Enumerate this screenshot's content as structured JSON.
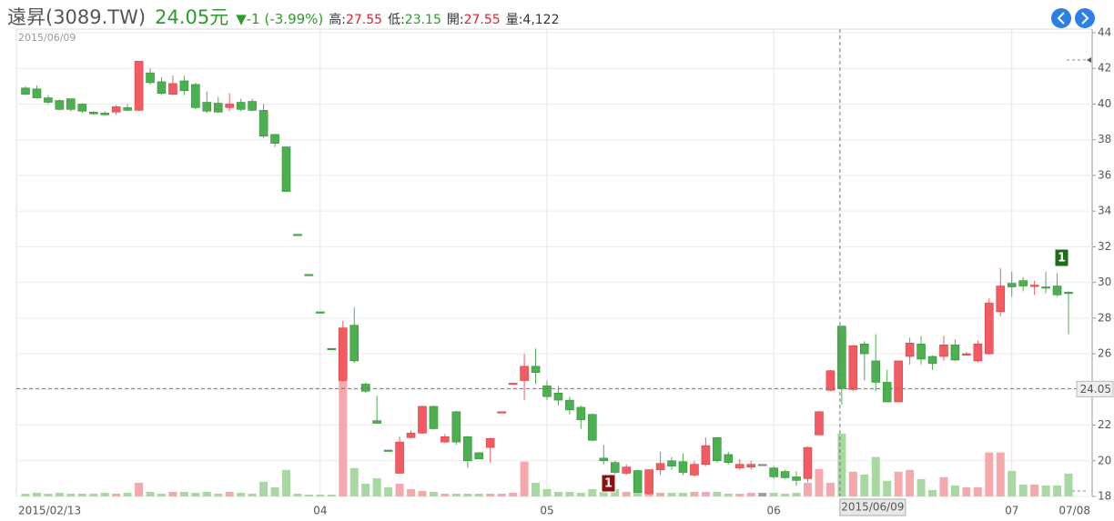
{
  "chart_data": {
    "type": "candlestick",
    "title": "遠昇(3089.TW)",
    "price": 24.05,
    "currency": "元",
    "change": "▼-1 (-3.99%)",
    "quote": [
      {
        "label": "高:",
        "value": 27.55
      },
      {
        "label": "低:",
        "value": 23.15
      },
      {
        "label": "開:",
        "value": 27.55
      },
      {
        "label": "量:",
        "value": "4,122"
      }
    ],
    "crosshair": {
      "date": "2015/06/09",
      "price": 24.05,
      "index": 72
    },
    "markers": [
      {
        "label": "1",
        "color": "#8b1010"
      },
      {
        "label": "1",
        "color": "#1e6b1e"
      }
    ],
    "up_color": "#f25b62",
    "down_color": "#4caf50",
    "flat_color": "#888888",
    "up_volume_color": "#f6a9ad",
    "down_volume_color": "#a9d9a2",
    "flat_volume_color": "#a0a0a0",
    "ylim": [
      18,
      44
    ],
    "yticks": [
      18,
      20,
      22,
      24,
      26,
      28,
      30,
      32,
      34,
      36,
      38,
      40,
      42,
      44
    ],
    "volume_lim": [
      0,
      9000
    ],
    "grid": true,
    "categories": [
      "2015/02/13",
      null,
      null,
      null,
      null,
      null,
      null,
      null,
      null,
      null,
      null,
      null,
      null,
      null,
      null,
      null,
      null,
      null,
      null,
      null,
      null,
      null,
      null,
      null,
      null,
      null,
      "04",
      null,
      null,
      null,
      null,
      null,
      null,
      null,
      null,
      null,
      null,
      null,
      null,
      null,
      null,
      null,
      null,
      null,
      null,
      null,
      "05",
      null,
      null,
      null,
      null,
      null,
      null,
      null,
      null,
      null,
      null,
      null,
      null,
      null,
      null,
      null,
      null,
      null,
      null,
      null,
      "06",
      null,
      null,
      null,
      null,
      null,
      null,
      null,
      null,
      null,
      null,
      null,
      null,
      null,
      null,
      null,
      null,
      null,
      null,
      null,
      null,
      "07",
      null,
      null,
      null,
      null,
      "07/08"
    ],
    "open": [
      40.9,
      40.85,
      40.35,
      40.2,
      40.3,
      40.0,
      39.55,
      39.5,
      39.55,
      39.8,
      39.65,
      41.75,
      41.25,
      40.55,
      41.3,
      41.1,
      40.1,
      40.05,
      39.8,
      40.1,
      40.15,
      39.65,
      38.3,
      37.6,
      32.7,
      30.45,
      28.35,
      26.3,
      24.5,
      27.6,
      24.3,
      22.25,
      20.6,
      19.3,
      21.3,
      21.55,
      23.05,
      21.05,
      22.75,
      21.35,
      20.45,
      20.75,
      22.75,
      24.35,
      24.5,
      25.3,
      24.2,
      23.8,
      23.4,
      23.0,
      22.6,
      20.15,
      19.9,
      19.3,
      19.45,
      18.15,
      19.5,
      20.0,
      19.95,
      19.2,
      19.8,
      21.3,
      20.35,
      19.6,
      19.65,
      19.8,
      19.6,
      19.4,
      19.1,
      19.0,
      21.45,
      23.95,
      27.55,
      24.0,
      26.55,
      25.6,
      24.4,
      23.3,
      25.85,
      26.55,
      25.85,
      25.85,
      26.5,
      26.0,
      25.6,
      26.0,
      28.35,
      29.95,
      30.1,
      29.85,
      29.75,
      29.8,
      29.45
    ],
    "high": [
      41.0,
      41.05,
      40.5,
      40.25,
      40.3,
      40.05,
      39.6,
      39.6,
      39.95,
      40.0,
      42.4,
      42.0,
      41.5,
      41.6,
      41.6,
      41.2,
      40.7,
      40.4,
      40.6,
      40.3,
      40.3,
      40.0,
      38.3,
      37.6,
      32.7,
      30.45,
      28.35,
      26.3,
      27.85,
      28.6,
      24.4,
      23.65,
      20.6,
      21.35,
      21.7,
      23.1,
      23.1,
      21.5,
      22.8,
      21.4,
      20.5,
      21.3,
      22.75,
      24.35,
      26.0,
      26.3,
      24.5,
      24.2,
      23.6,
      23.1,
      22.65,
      20.9,
      20.0,
      19.8,
      19.5,
      19.5,
      20.5,
      20.2,
      20.4,
      20.0,
      21.3,
      21.3,
      20.5,
      20.1,
      20.0,
      19.8,
      19.7,
      19.5,
      19.4,
      20.8,
      22.8,
      25.1,
      27.55,
      26.5,
      26.7,
      27.1,
      25.1,
      25.6,
      26.9,
      27.0,
      25.9,
      27.0,
      26.8,
      26.1,
      26.75,
      29.1,
      30.8,
      30.6,
      30.3,
      30.1,
      30.6,
      30.5,
      29.5
    ],
    "low": [
      40.5,
      40.3,
      40.0,
      39.65,
      39.6,
      39.5,
      39.4,
      39.35,
      39.4,
      39.6,
      39.6,
      41.1,
      40.5,
      40.5,
      40.5,
      39.7,
      39.5,
      39.5,
      39.6,
      39.6,
      39.6,
      38.1,
      37.6,
      35.1,
      32.7,
      30.45,
      28.35,
      26.3,
      24.45,
      25.5,
      23.8,
      22.1,
      20.6,
      19.3,
      21.25,
      21.5,
      21.75,
      21.0,
      20.9,
      19.6,
      20.1,
      19.9,
      22.75,
      24.35,
      23.4,
      24.3,
      23.4,
      23.1,
      22.6,
      21.8,
      21.1,
      19.8,
      18.4,
      19.2,
      18.2,
      18.1,
      19.2,
      19.5,
      19.2,
      19.1,
      19.7,
      19.9,
      19.8,
      19.5,
      19.5,
      19.8,
      19.0,
      19.0,
      18.6,
      18.8,
      21.45,
      23.9,
      23.15,
      23.9,
      24.5,
      23.9,
      23.3,
      23.3,
      25.4,
      25.4,
      25.1,
      25.6,
      25.6,
      25.9,
      25.5,
      25.95,
      28.1,
      29.2,
      29.5,
      29.3,
      29.4,
      29.2,
      27.1
    ],
    "close": [
      40.55,
      40.35,
      40.1,
      39.7,
      39.7,
      39.6,
      39.45,
      39.4,
      39.85,
      39.65,
      42.4,
      41.2,
      40.6,
      41.15,
      40.75,
      39.8,
      39.6,
      39.55,
      40.0,
      39.7,
      39.65,
      38.2,
      37.8,
      35.1,
      32.7,
      30.45,
      28.35,
      26.3,
      27.45,
      25.6,
      23.9,
      22.1,
      20.6,
      21.05,
      21.55,
      23.05,
      21.8,
      21.35,
      21.05,
      20.0,
      20.1,
      21.25,
      22.75,
      24.35,
      25.3,
      24.95,
      23.6,
      23.4,
      22.85,
      22.3,
      21.15,
      20.0,
      19.35,
      19.65,
      18.2,
      19.5,
      19.85,
      19.7,
      19.35,
      19.8,
      20.85,
      20.0,
      19.9,
      19.8,
      19.8,
      19.8,
      19.1,
      19.05,
      18.9,
      20.75,
      22.75,
      25.05,
      24.05,
      26.45,
      26.0,
      24.4,
      23.3,
      25.6,
      26.6,
      25.7,
      25.45,
      26.5,
      25.65,
      26.0,
      26.55,
      28.85,
      29.8,
      29.75,
      29.8,
      29.85,
      29.7,
      29.3,
      29.4
    ],
    "volume": [
      180,
      240,
      180,
      240,
      180,
      180,
      180,
      240,
      180,
      240,
      900,
      300,
      180,
      300,
      300,
      240,
      300,
      180,
      300,
      240,
      180,
      960,
      600,
      1740,
      180,
      120,
      120,
      120,
      8760,
      1860,
      840,
      1200,
      600,
      840,
      480,
      360,
      300,
      180,
      180,
      180,
      180,
      180,
      180,
      240,
      2280,
      900,
      480,
      300,
      300,
      240,
      480,
      300,
      480,
      300,
      180,
      300,
      240,
      240,
      240,
      300,
      300,
      300,
      180,
      180,
      240,
      240,
      240,
      180,
      240,
      900,
      1800,
      900,
      4122,
      1620,
      1440,
      2580,
      1020,
      1620,
      1740,
      1140,
      420,
      1260,
      720,
      600,
      600,
      2880,
      2880,
      1680,
      780,
      780,
      720,
      720,
      1500
    ]
  }
}
